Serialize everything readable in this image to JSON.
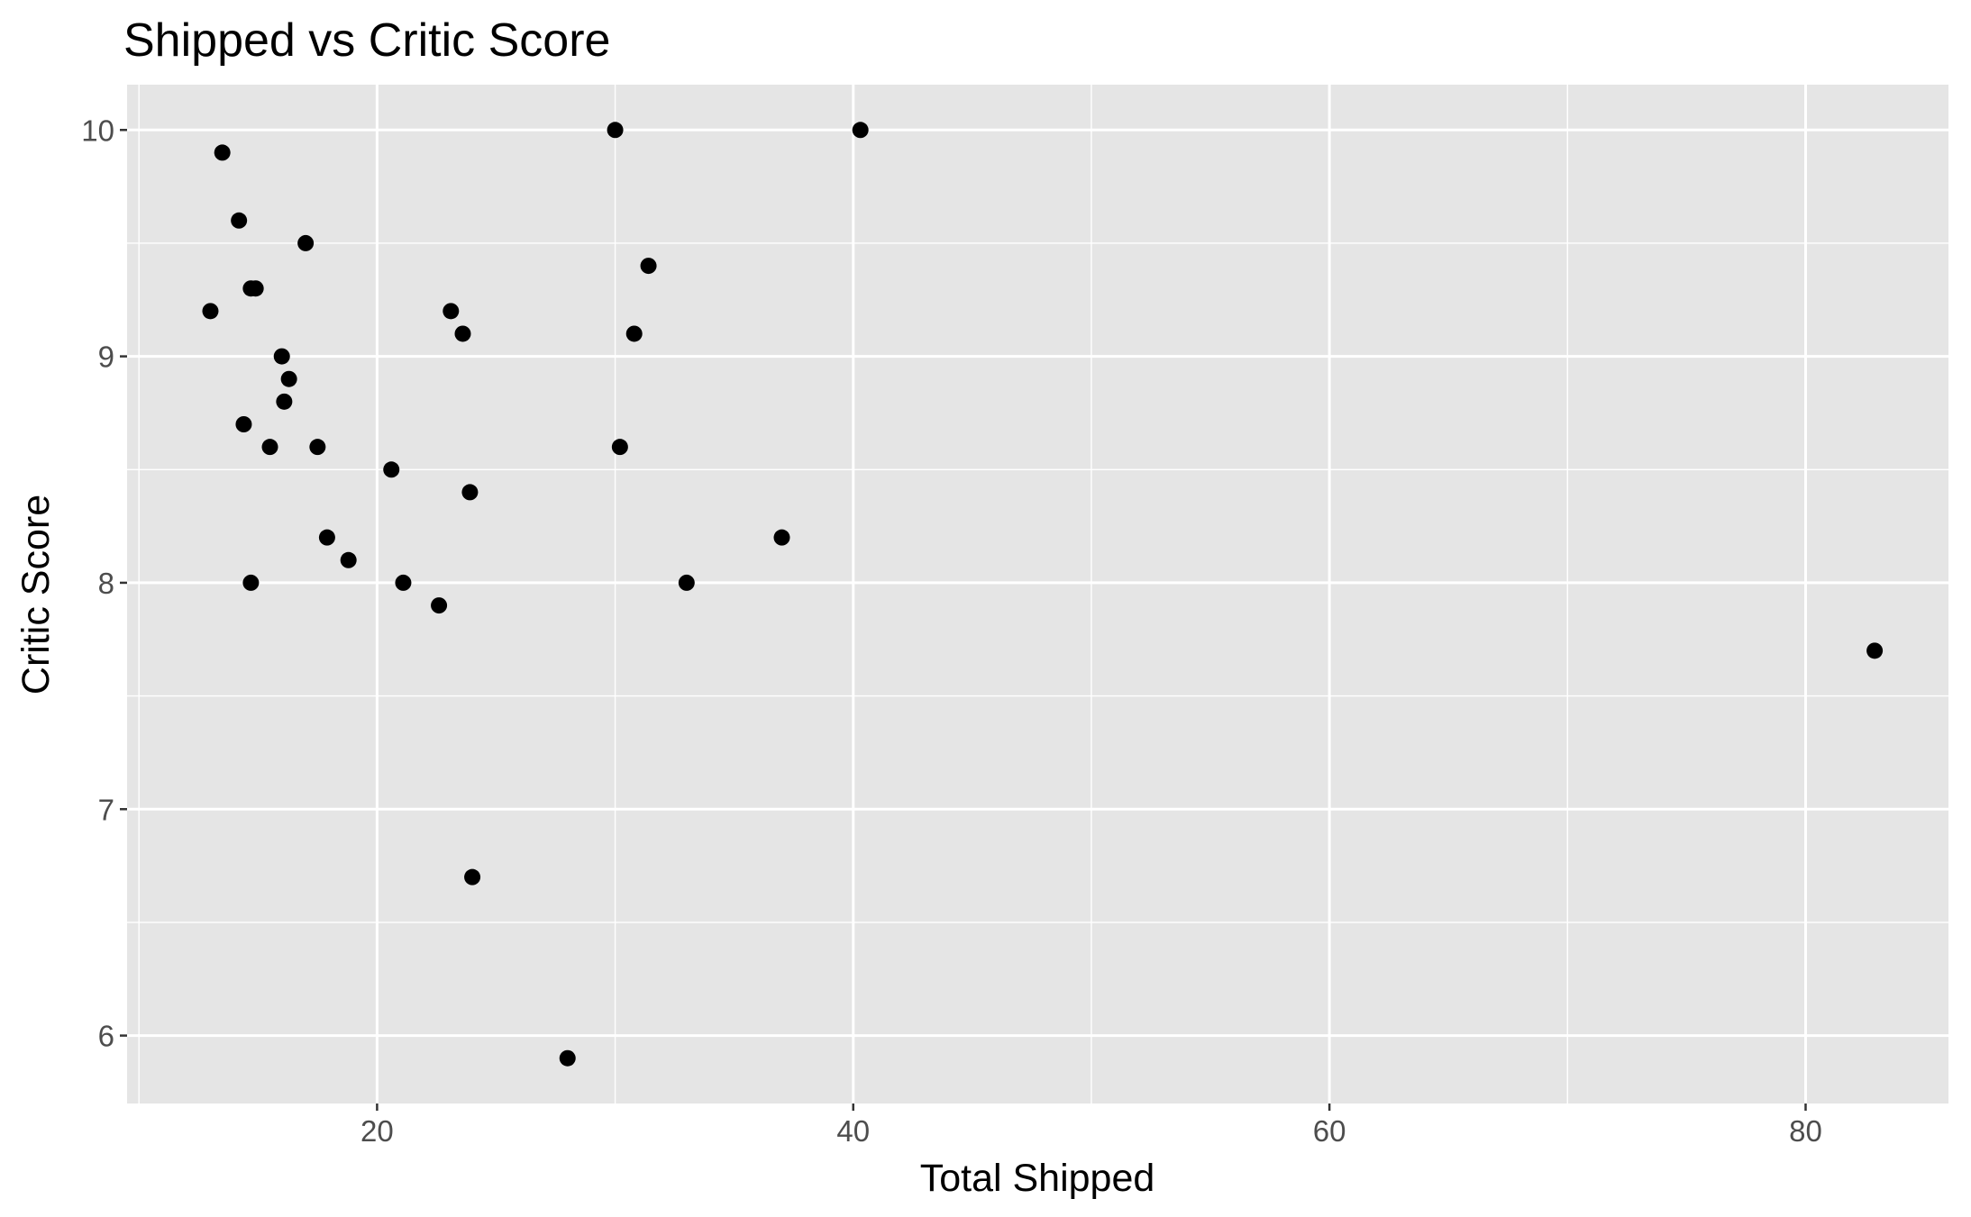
{
  "chart_data": {
    "type": "scatter",
    "title": "Shipped vs Critic Score",
    "xlabel": "Total Shipped",
    "ylabel": "Critic Score",
    "xlim": [
      9.5,
      86
    ],
    "ylim": [
      5.7,
      10.2
    ],
    "x_ticks": [
      20,
      40,
      60,
      80
    ],
    "x_tick_labels": [
      "20",
      "40",
      "60",
      "80"
    ],
    "y_ticks": [
      6,
      7,
      8,
      9,
      10
    ],
    "y_tick_labels": [
      "6",
      "7",
      "8",
      "9",
      "10"
    ],
    "x_minor_ticks": [
      10,
      30,
      50,
      70
    ],
    "y_minor_ticks": [
      6.5,
      7.5,
      8.5,
      9.5
    ],
    "grid": true,
    "panel_color": "#e5e5e5",
    "grid_color": "#ffffff",
    "point_color": "#000000",
    "points": [
      {
        "x": 13.0,
        "y": 9.2
      },
      {
        "x": 13.5,
        "y": 9.9
      },
      {
        "x": 14.2,
        "y": 9.6
      },
      {
        "x": 14.4,
        "y": 8.7
      },
      {
        "x": 14.7,
        "y": 9.3
      },
      {
        "x": 14.9,
        "y": 9.3
      },
      {
        "x": 14.7,
        "y": 8.0
      },
      {
        "x": 15.5,
        "y": 8.6
      },
      {
        "x": 16.0,
        "y": 9.0
      },
      {
        "x": 16.1,
        "y": 8.8
      },
      {
        "x": 16.3,
        "y": 8.9
      },
      {
        "x": 17.0,
        "y": 9.5
      },
      {
        "x": 17.5,
        "y": 8.6
      },
      {
        "x": 17.9,
        "y": 8.2
      },
      {
        "x": 18.8,
        "y": 8.1
      },
      {
        "x": 20.6,
        "y": 8.5
      },
      {
        "x": 21.1,
        "y": 8.0
      },
      {
        "x": 22.6,
        "y": 7.9
      },
      {
        "x": 23.1,
        "y": 9.2
      },
      {
        "x": 23.6,
        "y": 9.1
      },
      {
        "x": 23.9,
        "y": 8.4
      },
      {
        "x": 24.0,
        "y": 6.7
      },
      {
        "x": 28.0,
        "y": 5.9
      },
      {
        "x": 30.0,
        "y": 10.0
      },
      {
        "x": 30.2,
        "y": 8.6
      },
      {
        "x": 30.8,
        "y": 9.1
      },
      {
        "x": 31.4,
        "y": 9.4
      },
      {
        "x": 33.0,
        "y": 8.0
      },
      {
        "x": 37.0,
        "y": 8.2
      },
      {
        "x": 40.3,
        "y": 10.0
      },
      {
        "x": 82.9,
        "y": 7.7
      }
    ]
  }
}
